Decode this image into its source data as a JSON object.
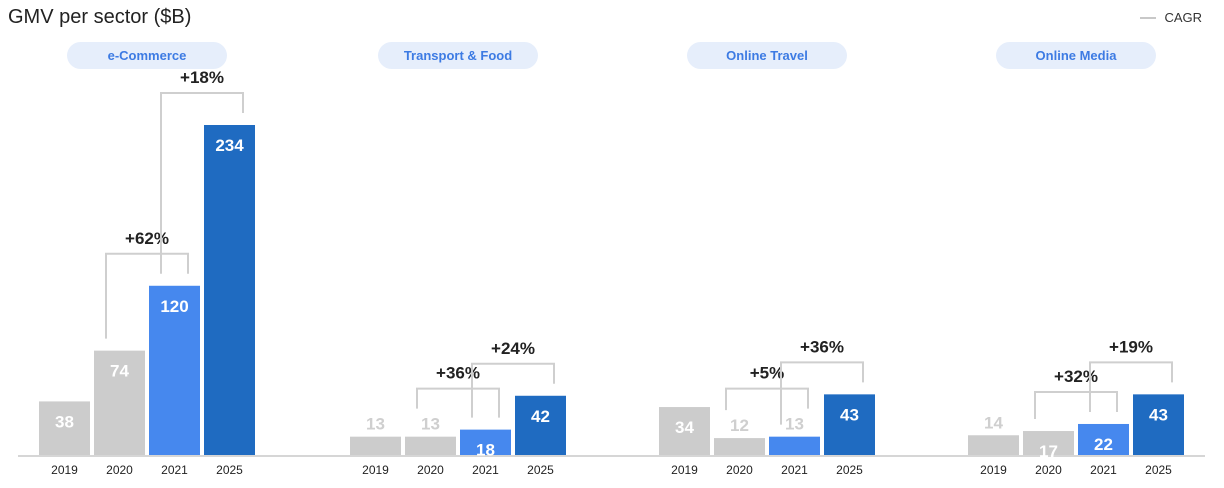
{
  "chart_data": [
    {
      "type": "bar",
      "title": "e-Commerce",
      "categories": [
        "2019",
        "2020",
        "2021",
        "2025"
      ],
      "values": [
        38,
        74,
        120,
        234
      ],
      "cagr": [
        {
          "from": "2020",
          "to": "2021",
          "label": "+62%"
        },
        {
          "from": "2021",
          "to": "2025",
          "label": "+18%"
        }
      ]
    },
    {
      "type": "bar",
      "title": "Transport & Food",
      "categories": [
        "2019",
        "2020",
        "2021",
        "2025"
      ],
      "values": [
        13,
        13,
        18,
        42
      ],
      "cagr": [
        {
          "from": "2020",
          "to": "2021",
          "label": "+36%"
        },
        {
          "from": "2021",
          "to": "2025",
          "label": "+24%"
        }
      ]
    },
    {
      "type": "bar",
      "title": "Online Travel",
      "categories": [
        "2019",
        "2020",
        "2021",
        "2025"
      ],
      "values": [
        34,
        12,
        13,
        43
      ],
      "cagr": [
        {
          "from": "2020",
          "to": "2021",
          "label": "+5%"
        },
        {
          "from": "2021",
          "to": "2025",
          "label": "+36%"
        }
      ]
    },
    {
      "type": "bar",
      "title": "Online Media",
      "categories": [
        "2019",
        "2020",
        "2021",
        "2025"
      ],
      "values": [
        14,
        17,
        22,
        43
      ],
      "cagr": [
        {
          "from": "2020",
          "to": "2021",
          "label": "+32%"
        },
        {
          "from": "2021",
          "to": "2025",
          "label": "+19%"
        }
      ]
    }
  ],
  "header": {
    "title": "GMV per sector ($B)",
    "legend_label": "CAGR"
  },
  "colors": {
    "historical": "#cccccc",
    "2021": "#4688ee",
    "2025": "#1f6bc1",
    "bracket": "#cfcfcf",
    "pill_bg": "#e6eefb",
    "pill_text": "#3d7be3"
  },
  "y_unit": "$B"
}
